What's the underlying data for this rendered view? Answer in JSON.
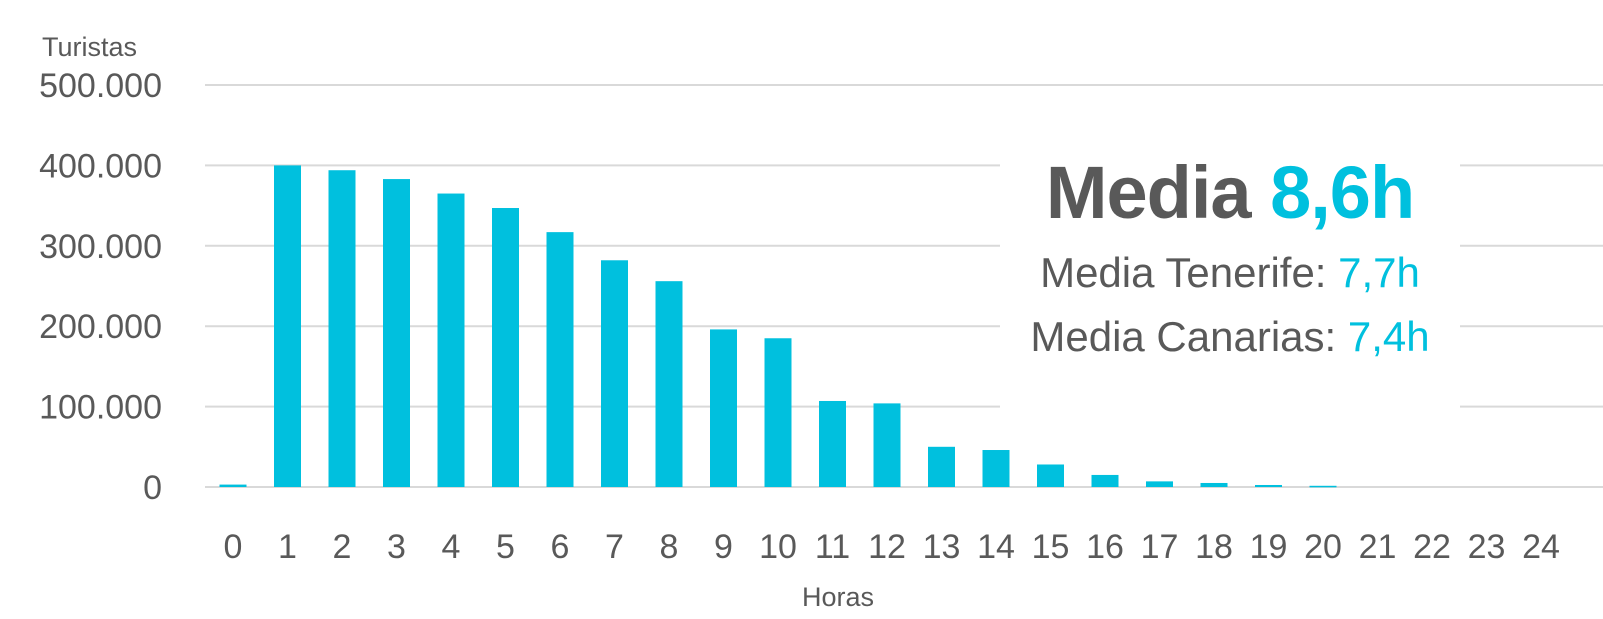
{
  "colors": {
    "bar": "#00c0de",
    "text": "#595959",
    "grid": "#d9d9d9",
    "accent": "#00c0de"
  },
  "chart_data": {
    "type": "bar",
    "ylabel": "Turistas",
    "xlabel": "Horas",
    "ylim": [
      0,
      500000
    ],
    "y_ticks": [
      "0",
      "100.000",
      "200.000",
      "300.000",
      "400.000",
      "500.000"
    ],
    "y_tick_values": [
      0,
      100000,
      200000,
      300000,
      400000,
      500000
    ],
    "categories": [
      "0",
      "1",
      "2",
      "3",
      "4",
      "5",
      "6",
      "7",
      "8",
      "9",
      "10",
      "11",
      "12",
      "13",
      "14",
      "15",
      "16",
      "17",
      "18",
      "19",
      "20",
      "21",
      "22",
      "23",
      "24"
    ],
    "values": [
      3000,
      400000,
      394000,
      383000,
      365000,
      347000,
      317000,
      282000,
      256000,
      196000,
      185000,
      107000,
      104000,
      50000,
      46000,
      28000,
      15000,
      7000,
      5000,
      2500,
      1500,
      0,
      0,
      0,
      0
    ],
    "grid": true
  },
  "annotation": {
    "main_label": "Media",
    "main_value": "8,6h",
    "tenerife_label": "Media Tenerife:",
    "tenerife_value": "7,7h",
    "canarias_label": "Media Canarias:",
    "canarias_value": "7,4h"
  }
}
